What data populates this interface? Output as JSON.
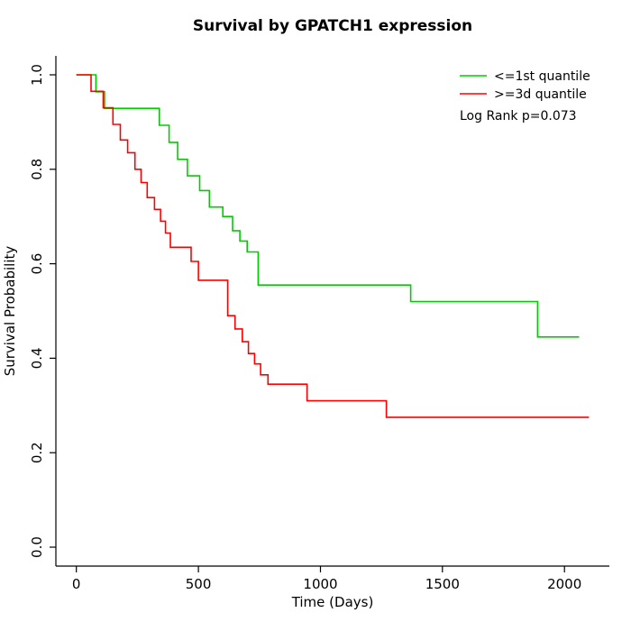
{
  "chart_data": {
    "type": "line",
    "subtype": "kaplan-meier-step",
    "title": "Survival by GPATCH1 expression",
    "xlabel": "Time (Days)",
    "ylabel": "Survival Probability",
    "xlim": [
      0,
      2100
    ],
    "ylim": [
      0,
      1
    ],
    "axis_padding_fraction": 0.04,
    "xticks": [
      "0",
      "500",
      "1000",
      "1500",
      "2000"
    ],
    "yticks": [
      "0.0",
      "0.2",
      "0.4",
      "0.6",
      "0.8",
      "1.0"
    ],
    "grid": false,
    "legend_position": "top-right",
    "annotation": "Log Rank p=0.073",
    "series": [
      {
        "name": "<=1st quantile",
        "color": "#00CD00",
        "points": [
          [
            0,
            1.0
          ],
          [
            80,
            0.964
          ],
          [
            115,
            0.929
          ],
          [
            340,
            0.893
          ],
          [
            380,
            0.857
          ],
          [
            415,
            0.821
          ],
          [
            455,
            0.786
          ],
          [
            505,
            0.755
          ],
          [
            545,
            0.72
          ],
          [
            600,
            0.7
          ],
          [
            640,
            0.67
          ],
          [
            670,
            0.648
          ],
          [
            700,
            0.625
          ],
          [
            745,
            0.555
          ],
          [
            1370,
            0.52
          ],
          [
            1890,
            0.445
          ]
        ],
        "end": 2060
      },
      {
        "name": ">=3d quantile",
        "color": "#FF0000",
        "points": [
          [
            0,
            1.0
          ],
          [
            60,
            0.965
          ],
          [
            110,
            0.93
          ],
          [
            150,
            0.895
          ],
          [
            180,
            0.862
          ],
          [
            210,
            0.835
          ],
          [
            240,
            0.8
          ],
          [
            265,
            0.772
          ],
          [
            290,
            0.74
          ],
          [
            320,
            0.715
          ],
          [
            345,
            0.69
          ],
          [
            365,
            0.665
          ],
          [
            385,
            0.635
          ],
          [
            470,
            0.605
          ],
          [
            500,
            0.565
          ],
          [
            620,
            0.49
          ],
          [
            650,
            0.462
          ],
          [
            680,
            0.435
          ],
          [
            705,
            0.41
          ],
          [
            730,
            0.388
          ],
          [
            755,
            0.365
          ],
          [
            785,
            0.345
          ],
          [
            945,
            0.31
          ],
          [
            1270,
            0.275
          ]
        ],
        "end": 2100
      }
    ]
  }
}
